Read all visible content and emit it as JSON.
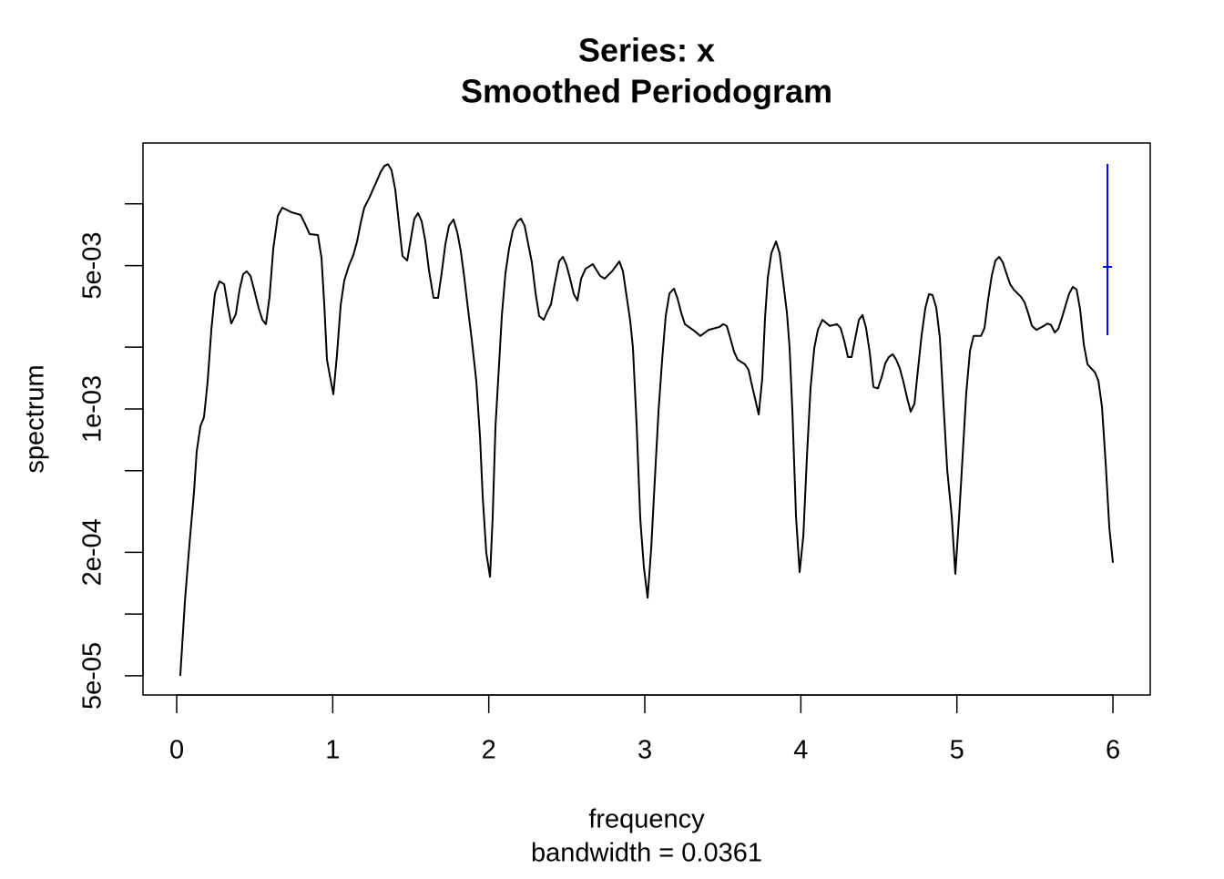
{
  "chart_data": {
    "type": "line",
    "title": "Series: x",
    "subtitle": "Smoothed Periodogram",
    "xlabel": "frequency",
    "xlabel_sub": "bandwidth = 0.0361",
    "ylabel": "spectrum",
    "log_y": true,
    "color": "#000000",
    "xlim": [
      -0.216,
      6.239
    ],
    "xticks": [
      0,
      1,
      2,
      3,
      4,
      5,
      6
    ],
    "ylim": [
      4.03e-05,
      0.0198
    ],
    "yticks": [
      {
        "value": 5e-05,
        "label": "5e-05"
      },
      {
        "value": 0.0001,
        "label": null
      },
      {
        "value": 0.0002,
        "label": "2e-04"
      },
      {
        "value": 0.0005,
        "label": null
      },
      {
        "value": 0.001,
        "label": "1e-03"
      },
      {
        "value": 0.002,
        "label": null
      },
      {
        "value": 0.005,
        "label": "5e-03"
      },
      {
        "value": 0.01,
        "label": null
      }
    ],
    "x": [
      0.023,
      0.053,
      0.082,
      0.111,
      0.128,
      0.152,
      0.175,
      0.198,
      0.222,
      0.245,
      0.274,
      0.304,
      0.327,
      0.35,
      0.379,
      0.403,
      0.426,
      0.449,
      0.473,
      0.496,
      0.525,
      0.549,
      0.572,
      0.595,
      0.619,
      0.648,
      0.677,
      0.735,
      0.794,
      0.823,
      0.852,
      0.905,
      0.928,
      0.946,
      0.963,
      0.981,
      1.004,
      1.027,
      1.051,
      1.074,
      1.103,
      1.132,
      1.156,
      1.179,
      1.202,
      1.232,
      1.261,
      1.284,
      1.307,
      1.331,
      1.354,
      1.377,
      1.401,
      1.424,
      1.447,
      1.477,
      1.5,
      1.523,
      1.547,
      1.57,
      1.593,
      1.617,
      1.646,
      1.675,
      1.698,
      1.722,
      1.745,
      1.774,
      1.798,
      1.821,
      1.844,
      1.868,
      1.891,
      1.92,
      1.944,
      1.961,
      1.984,
      2.008,
      2.025,
      2.043,
      2.066,
      2.084,
      2.107,
      2.13,
      2.154,
      2.183,
      2.206,
      2.23,
      2.253,
      2.276,
      2.3,
      2.323,
      2.352,
      2.376,
      2.399,
      2.422,
      2.451,
      2.475,
      2.498,
      2.521,
      2.545,
      2.568,
      2.592,
      2.621,
      2.667,
      2.714,
      2.743,
      2.79,
      2.837,
      2.86,
      2.883,
      2.907,
      2.924,
      2.948,
      2.971,
      2.994,
      3.018,
      3.041,
      3.064,
      3.088,
      3.111,
      3.134,
      3.158,
      3.187,
      3.21,
      3.234,
      3.257,
      3.309,
      3.356,
      3.409,
      3.479,
      3.502,
      3.525,
      3.549,
      3.572,
      3.595,
      3.642,
      3.665,
      3.689,
      3.73,
      3.753,
      3.77,
      3.788,
      3.811,
      3.841,
      3.864,
      3.887,
      3.911,
      3.928,
      3.946,
      3.969,
      3.992,
      4.016,
      4.039,
      4.062,
      4.086,
      4.109,
      4.138,
      4.185,
      4.232,
      4.255,
      4.278,
      4.302,
      4.325,
      4.348,
      4.372,
      4.395,
      4.418,
      4.442,
      4.465,
      4.494,
      4.518,
      4.541,
      4.564,
      4.588,
      4.611,
      4.634,
      4.658,
      4.681,
      4.704,
      4.728,
      4.751,
      4.774,
      4.798,
      4.821,
      4.844,
      4.868,
      4.891,
      4.914,
      4.938,
      4.967,
      4.99,
      5.014,
      5.037,
      5.06,
      5.084,
      5.107,
      5.154,
      5.177,
      5.2,
      5.224,
      5.247,
      5.271,
      5.294,
      5.317,
      5.341,
      5.364,
      5.411,
      5.434,
      5.457,
      5.481,
      5.51,
      5.557,
      5.58,
      5.603,
      5.627,
      5.65,
      5.673,
      5.697,
      5.72,
      5.743,
      5.767,
      5.79,
      5.813,
      5.837,
      5.884,
      5.907,
      5.93,
      5.954,
      5.977,
      6.0
    ],
    "values": [
      5e-05,
      0.000116,
      0.00022,
      0.000394,
      0.000618,
      0.000823,
      0.000912,
      0.00135,
      0.00243,
      0.00366,
      0.00419,
      0.00406,
      0.00321,
      0.00261,
      0.0029,
      0.00382,
      0.00454,
      0.00469,
      0.00445,
      0.00382,
      0.00311,
      0.00272,
      0.00259,
      0.00352,
      0.00605,
      0.00874,
      0.00958,
      0.0091,
      0.00883,
      0.00797,
      0.00712,
      0.00705,
      0.00546,
      0.00321,
      0.00174,
      0.00146,
      0.00118,
      0.00183,
      0.00321,
      0.00423,
      0.00498,
      0.00563,
      0.00656,
      0.00805,
      0.00958,
      0.0106,
      0.0119,
      0.013,
      0.0143,
      0.0153,
      0.0156,
      0.0146,
      0.0117,
      0.00805,
      0.00557,
      0.00529,
      0.0067,
      0.00847,
      0.00901,
      0.00822,
      0.00663,
      0.00473,
      0.00348,
      0.00348,
      0.00459,
      0.00636,
      0.00781,
      0.00839,
      0.00727,
      0.00587,
      0.00432,
      0.00302,
      0.00218,
      0.00137,
      0.000728,
      0.000375,
      0.000199,
      0.000152,
      0.000296,
      0.000823,
      0.00165,
      0.00287,
      0.00459,
      0.00605,
      0.00741,
      0.00822,
      0.00847,
      0.00781,
      0.00636,
      0.00519,
      0.00366,
      0.00284,
      0.00272,
      0.00299,
      0.00324,
      0.00406,
      0.00524,
      0.00552,
      0.00503,
      0.00432,
      0.00363,
      0.00338,
      0.00432,
      0.00483,
      0.00508,
      0.00445,
      0.00432,
      0.00469,
      0.00524,
      0.00469,
      0.00356,
      0.00267,
      0.00198,
      0.000823,
      0.00029,
      0.000169,
      0.00012,
      0.000209,
      0.000451,
      0.00098,
      0.00174,
      0.00284,
      0.00366,
      0.00386,
      0.00345,
      0.00293,
      0.00259,
      0.00243,
      0.00227,
      0.00243,
      0.00251,
      0.00259,
      0.00254,
      0.0022,
      0.0019,
      0.00174,
      0.00165,
      0.00155,
      0.00128,
      0.00094,
      0.00142,
      0.00275,
      0.00436,
      0.00575,
      0.00656,
      0.00575,
      0.00414,
      0.00293,
      0.00198,
      0.00096,
      0.000299,
      0.00016,
      0.000241,
      0.000587,
      0.00126,
      0.00198,
      0.00243,
      0.00272,
      0.00254,
      0.00259,
      0.00248,
      0.00215,
      0.00179,
      0.00179,
      0.0022,
      0.00272,
      0.00287,
      0.00248,
      0.00187,
      0.00128,
      0.00126,
      0.00143,
      0.00167,
      0.00179,
      0.00185,
      0.00174,
      0.00158,
      0.00135,
      0.00113,
      0.00097,
      0.00106,
      0.00157,
      0.00229,
      0.00311,
      0.00363,
      0.00359,
      0.00311,
      0.00222,
      0.00106,
      0.000504,
      0.000299,
      0.000157,
      0.000299,
      0.000594,
      0.0012,
      0.00192,
      0.00227,
      0.00227,
      0.00248,
      0.00341,
      0.00449,
      0.00529,
      0.00552,
      0.00519,
      0.00459,
      0.00406,
      0.00382,
      0.00352,
      0.00331,
      0.00293,
      0.00254,
      0.00243,
      0.00254,
      0.00261,
      0.00257,
      0.00236,
      0.00246,
      0.00278,
      0.00321,
      0.00366,
      0.00394,
      0.00382,
      0.00305,
      0.00207,
      0.00165,
      0.00151,
      0.00137,
      0.00102,
      0.000536,
      0.000262,
      0.000178
    ],
    "ci_bar": {
      "x": 5.965,
      "upper": 0.01567,
      "center": 0.00493,
      "lower": 0.00229,
      "color": "#0000ff"
    }
  }
}
